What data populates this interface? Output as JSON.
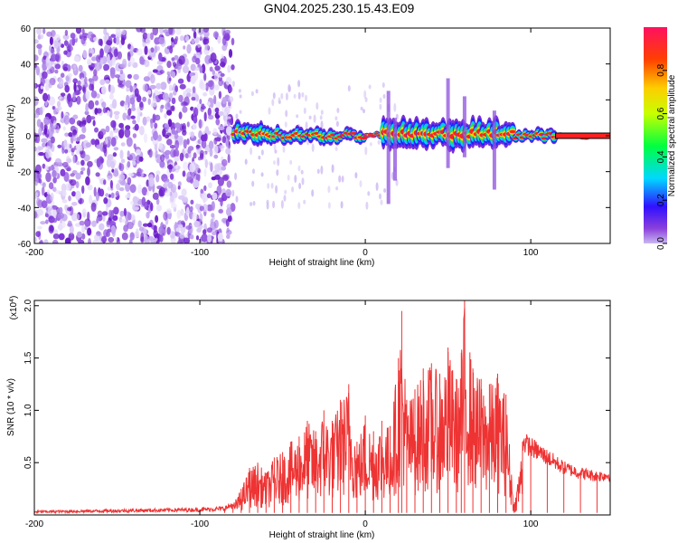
{
  "title": "GN04.2025.230.15.43.E09",
  "chart_data": [
    {
      "type": "heatmap",
      "xlabel": "Height of straight line (km)",
      "ylabel": "Frequency (Hz)",
      "xlim": [
        -200,
        148
      ],
      "ylim": [
        -60,
        60
      ],
      "xticks": [
        -200,
        -100,
        0,
        100
      ],
      "yticks": [
        -60,
        -40,
        -20,
        0,
        20,
        40,
        60
      ],
      "colorbar": {
        "label": "Normalized spectral amplitude",
        "range": [
          0,
          1
        ],
        "ticks": [
          0.0,
          0.2,
          0.4,
          0.6,
          0.8
        ]
      },
      "noise_region_x": [
        -200,
        -80
      ],
      "signal_band": [
        {
          "x": [
            -80,
            -60
          ],
          "f": [
            -6,
            8
          ]
        },
        {
          "x": [
            -60,
            -20
          ],
          "f": [
            -5,
            5
          ]
        },
        {
          "x": [
            -20,
            0
          ],
          "f": [
            -4,
            4
          ]
        },
        {
          "x": [
            0,
            10
          ],
          "f": [
            -2,
            2
          ]
        },
        {
          "x": [
            10,
            90
          ],
          "f": [
            -8,
            10
          ]
        },
        {
          "x": [
            90,
            115
          ],
          "f": [
            -4,
            4
          ]
        },
        {
          "x": [
            115,
            148
          ],
          "f": [
            -1,
            1
          ]
        }
      ]
    },
    {
      "type": "line",
      "xlabel": "Height of straight line (km)",
      "ylabel": "SNR (10 * v/v)",
      "yscale_label": "(x10",
      "yscale_exp": "4",
      "xlim": [
        -200,
        148
      ],
      "ylim": [
        0,
        2.05
      ],
      "xticks": [
        -200,
        -100,
        0,
        100
      ],
      "yticks": [
        0.5,
        1.0,
        1.5,
        2.0
      ],
      "color": "#ee3333",
      "series": [
        {
          "x": [
            -200,
            -150,
            -100,
            -85,
            -80,
            -75,
            -70,
            -65,
            -60,
            -55,
            -50,
            -45,
            -40,
            -35,
            -30,
            -25,
            -20,
            -15,
            -10,
            -5,
            0,
            5,
            10,
            15,
            20,
            22,
            25,
            30,
            35,
            40,
            45,
            50,
            55,
            58,
            60,
            65,
            70,
            75,
            80,
            85,
            90,
            95,
            100,
            110,
            120,
            130,
            140,
            148
          ],
          "y": [
            0.03,
            0.04,
            0.05,
            0.06,
            0.1,
            0.25,
            0.45,
            0.5,
            0.4,
            0.55,
            0.6,
            0.7,
            0.75,
            0.9,
            0.8,
            1.0,
            0.9,
            1.1,
            1.25,
            0.7,
            0.95,
            0.8,
            0.9,
            0.85,
            1.5,
            1.95,
            1.1,
            1.2,
            1.4,
            1.45,
            1.35,
            1.6,
            1.3,
            1.55,
            2.05,
            1.4,
            1.3,
            1.25,
            1.35,
            1.15,
            0.1,
            0.7,
            0.65,
            0.55,
            0.45,
            0.4,
            0.37,
            0.38
          ]
        }
      ]
    }
  ]
}
